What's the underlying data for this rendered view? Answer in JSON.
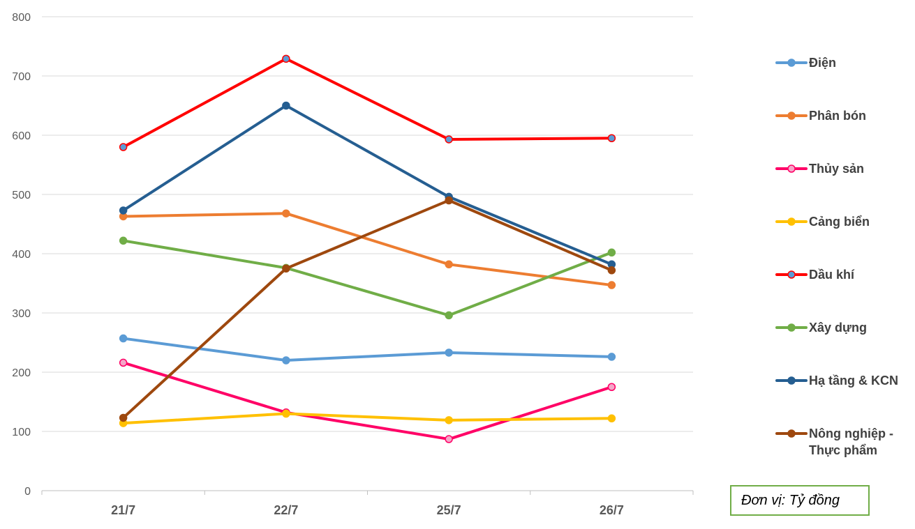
{
  "chart_data": {
    "type": "line",
    "categories": [
      "21/7",
      "22/7",
      "25/7",
      "26/7"
    ],
    "ylim": [
      0,
      800
    ],
    "yticks": [
      0,
      100,
      200,
      300,
      400,
      500,
      600,
      700,
      800
    ],
    "grid": true,
    "legend_position": "right",
    "unit_note": "Đơn vị: Tỷ đồng",
    "series": [
      {
        "name": "Điện",
        "color": "#5b9bd5",
        "marker_fill": "#5b9bd5",
        "values": [
          257,
          220,
          233,
          226
        ]
      },
      {
        "name": "Phân bón",
        "color": "#ed7d31",
        "marker_fill": "#ed7d31",
        "values": [
          463,
          468,
          382,
          347
        ]
      },
      {
        "name": "Thủy sản",
        "color": "#ff0066",
        "marker_fill": "#f4a6c8",
        "values": [
          216,
          132,
          87,
          175
        ]
      },
      {
        "name": "Cảng biển",
        "color": "#ffc000",
        "marker_fill": "#ffc000",
        "values": [
          114,
          130,
          119,
          122
        ]
      },
      {
        "name": "Dầu khí",
        "color": "#ff0000",
        "marker_fill": "#5b9bd5",
        "values": [
          580,
          729,
          593,
          595
        ]
      },
      {
        "name": "Xây dựng",
        "color": "#70ad47",
        "marker_fill": "#70ad47",
        "values": [
          422,
          376,
          296,
          402
        ]
      },
      {
        "name": "Hạ tầng & KCN",
        "color": "#255e91",
        "marker_fill": "#255e91",
        "values": [
          473,
          650,
          496,
          382
        ]
      },
      {
        "name": "Nông nghiệp - Thực phẩm",
        "legend_lines": [
          "Nông nghiệp -",
          "Thực phẩm"
        ],
        "color": "#9e480e",
        "marker_fill": "#9e480e",
        "values": [
          123,
          375,
          490,
          372
        ]
      }
    ]
  }
}
